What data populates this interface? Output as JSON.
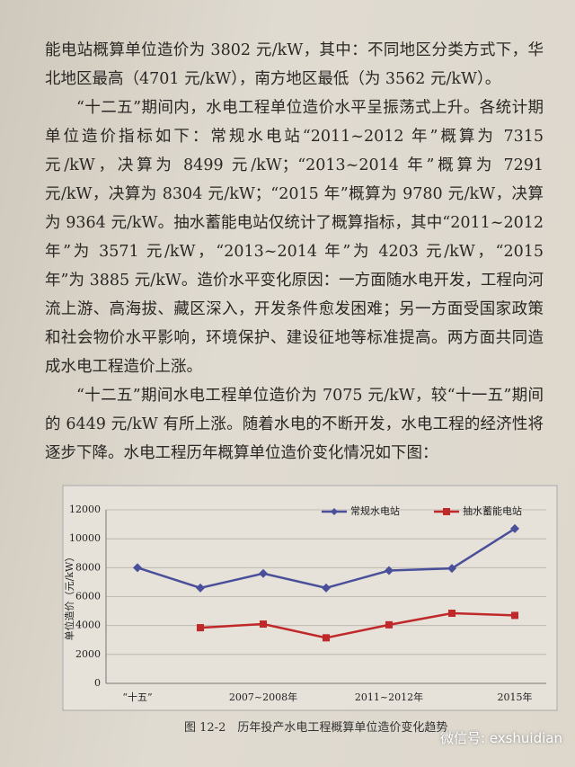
{
  "paragraphs": [
    "能电站概算单位造价为 3802 元/kW，其中：不同地区分类方式下，华北地区最高（4701 元/kW），南方地区最低（为 3562 元/kW）。",
    "“十二五”期间内，水电工程单位造价水平呈振荡式上升。各统计期单位造价指标如下：常规水电站“2011~2012 年”概算为 7315 元/kW，决算为 8499 元/kW；“2013~2014 年”概算为 7291 元/kW，决算为 8304 元/kW；“2015 年”概算为 9780 元/kW，决算为 9364 元/kW。抽水蓄能电站仅统计了概算指标，其中“2011~2012 年”为 3571 元/kW，“2013~2014 年”为 4203 元/kW，“2015 年”为 3885 元/kW。造价水平变化原因：一方面随水电开发，工程向河流上游、高海拔、藏区深入，开发条件愈发困难；另一方面受国家政策和社会物价水平影响，环境保护、建设征地等标准提高。两方面共同造成水电工程造价上涨。",
    "“十二五”期间水电工程单位造价为 7075 元/kW，较“十一五”期间的 6449 元/kW 有所上涨。随着水电的不断开发，水电工程的经济性将逐步下降。水电工程历年概算单位造价变化情况如下图："
  ],
  "chart_data": {
    "type": "line",
    "ylabel": "单位造价（元/kW）",
    "categories": [
      "“十五”",
      null,
      "2007~2008年",
      null,
      "2011~2012年",
      null,
      "2015年"
    ],
    "series": [
      {
        "name": "常规水电站",
        "color": "#4a4f9a",
        "values": [
          8000,
          6600,
          7600,
          6600,
          7800,
          7950,
          10700
        ]
      },
      {
        "name": "抽水蓄能电站",
        "color": "#c0282a",
        "values": [
          null,
          3850,
          4100,
          3150,
          4050,
          4850,
          4700
        ]
      }
    ],
    "ylim": [
      0,
      12000
    ],
    "yticks": [
      0,
      2000,
      4000,
      6000,
      8000,
      10000,
      12000
    ],
    "grid": true,
    "legend": "top-right"
  },
  "caption": "图 12-2　历年投产水电工程概算单位造价变化趋势",
  "watermark": "微信号: exshuidian"
}
